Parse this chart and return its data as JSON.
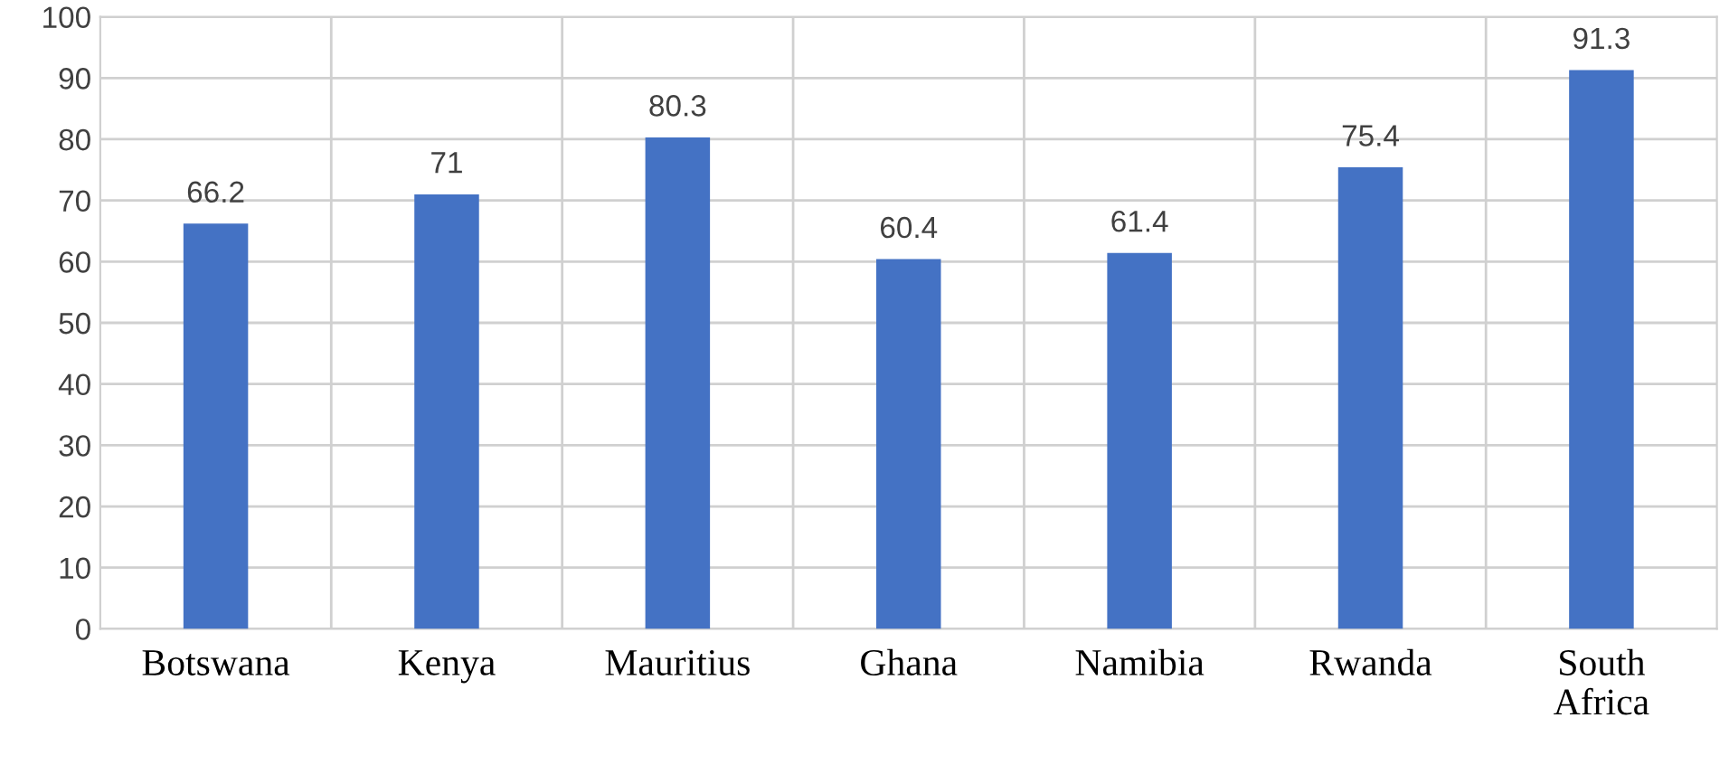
{
  "chart_data": {
    "type": "bar",
    "categories": [
      "Botswana",
      "Kenya",
      "Mauritius",
      "Ghana",
      "Namibia",
      "Rwanda",
      "South\nAfrica"
    ],
    "values": [
      66.2,
      71,
      80.3,
      60.4,
      61.4,
      75.4,
      91.3
    ],
    "color": "#4472c4",
    "ylim": [
      0,
      100
    ],
    "yticks": [
      0,
      10,
      20,
      30,
      40,
      50,
      60,
      70,
      80,
      90,
      100
    ],
    "grid": true,
    "data_labels": true
  }
}
